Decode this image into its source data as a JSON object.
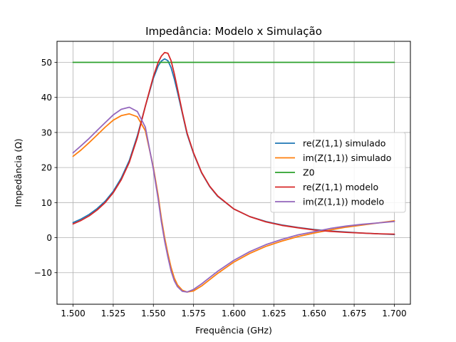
{
  "chart_data": {
    "type": "line",
    "title": "Impedância: Modelo x Simulação",
    "xlabel": "Frequência (GHz)",
    "ylabel": "Impedância (Ω)",
    "xlim": [
      1.49,
      1.71
    ],
    "ylim": [
      -19,
      56
    ],
    "xticks": [
      1.5,
      1.525,
      1.55,
      1.575,
      1.6,
      1.625,
      1.65,
      1.675,
      1.7
    ],
    "xtick_labels": [
      "1.500",
      "1.525",
      "1.550",
      "1.575",
      "1.600",
      "1.625",
      "1.650",
      "1.675",
      "1.700"
    ],
    "yticks": [
      -10,
      0,
      10,
      20,
      30,
      40,
      50
    ],
    "ytick_labels": [
      "−10",
      "0",
      "10",
      "20",
      "30",
      "40",
      "50"
    ],
    "grid": true,
    "legend_position": "center-right",
    "x": [
      1.5,
      1.505,
      1.51,
      1.515,
      1.52,
      1.525,
      1.53,
      1.535,
      1.54,
      1.545,
      1.55,
      1.553,
      1.555,
      1.557,
      1.559,
      1.561,
      1.563,
      1.565,
      1.568,
      1.571,
      1.575,
      1.58,
      1.585,
      1.59,
      1.6,
      1.61,
      1.62,
      1.63,
      1.64,
      1.65,
      1.66,
      1.67,
      1.68,
      1.69,
      1.7
    ],
    "series": [
      {
        "name": "re(Z(1,1) simulado",
        "color": "#1f77b4",
        "values": [
          4.3,
          5.3,
          6.6,
          8.3,
          10.4,
          13.2,
          17.0,
          22.0,
          29.0,
          37.5,
          45.5,
          49.0,
          50.4,
          51.0,
          50.5,
          48.5,
          45.3,
          41.5,
          35.5,
          29.5,
          24.0,
          18.5,
          14.6,
          11.8,
          8.2,
          6.0,
          4.6,
          3.6,
          2.9,
          2.3,
          1.9,
          1.6,
          1.3,
          1.1,
          0.9
        ]
      },
      {
        "name": "im(Z(1,1)) simulado",
        "color": "#ff7f0e",
        "values": [
          23.2,
          25.0,
          27.1,
          29.3,
          31.5,
          33.5,
          34.8,
          35.3,
          34.5,
          30.5,
          20.0,
          12.0,
          5.5,
          0.0,
          -4.5,
          -8.5,
          -11.5,
          -13.5,
          -15.0,
          -15.5,
          -15.2,
          -13.8,
          -12.0,
          -10.2,
          -7.0,
          -4.5,
          -2.5,
          -1.0,
          0.3,
          1.3,
          2.2,
          3.0,
          3.6,
          4.2,
          4.8
        ]
      },
      {
        "name": "Z0",
        "color": "#2ca02c",
        "values": [
          50,
          50,
          50,
          50,
          50,
          50,
          50,
          50,
          50,
          50,
          50,
          50,
          50,
          50,
          50,
          50,
          50,
          50,
          50,
          50,
          50,
          50,
          50,
          50,
          50,
          50,
          50,
          50,
          50,
          50,
          50,
          50,
          50,
          50,
          50
        ]
      },
      {
        "name": "re(Z(1,1) modelo",
        "color": "#d62728",
        "values": [
          3.9,
          4.9,
          6.2,
          7.9,
          10.0,
          12.8,
          16.5,
          21.5,
          28.5,
          37.5,
          46.0,
          50.0,
          51.8,
          52.8,
          52.6,
          50.5,
          46.8,
          42.5,
          35.8,
          29.8,
          24.2,
          18.6,
          14.7,
          11.9,
          8.2,
          6.0,
          4.5,
          3.5,
          2.8,
          2.2,
          1.8,
          1.5,
          1.3,
          1.1,
          1.0
        ]
      },
      {
        "name": "im(Z(1,1)) modelo",
        "color": "#9467bd",
        "values": [
          24.2,
          26.2,
          28.3,
          30.6,
          32.8,
          35.0,
          36.6,
          37.2,
          36.0,
          31.5,
          19.5,
          11.0,
          4.5,
          -1.0,
          -5.5,
          -9.5,
          -12.3,
          -14.0,
          -15.3,
          -15.5,
          -14.8,
          -13.2,
          -11.4,
          -9.6,
          -6.5,
          -4.0,
          -2.0,
          -0.5,
          0.8,
          1.7,
          2.6,
          3.3,
          3.8,
          4.2,
          4.6
        ]
      }
    ]
  }
}
